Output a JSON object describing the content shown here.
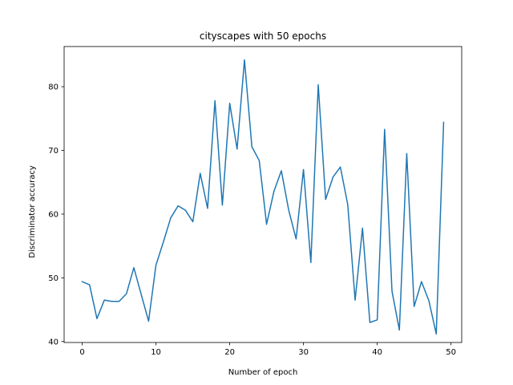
{
  "chart_data": {
    "type": "line",
    "title": "cityscapes with 50 epochs",
    "xlabel": "Number of epoch",
    "ylabel": "Discriminator accuracy",
    "xlim": [
      -2.45,
      51.45
    ],
    "ylim": [
      39.85,
      86.3
    ],
    "xticks": [
      0,
      10,
      20,
      30,
      40,
      50
    ],
    "yticks": [
      40,
      50,
      60,
      70,
      80
    ],
    "grid": false,
    "legend": "none",
    "series": [
      {
        "color": "#1f77b4",
        "x": [
          0,
          1,
          2,
          3,
          4,
          5,
          6,
          7,
          8,
          9,
          10,
          11,
          12,
          13,
          14,
          15,
          16,
          17,
          18,
          19,
          20,
          21,
          22,
          23,
          24,
          25,
          26,
          27,
          28,
          29,
          30,
          31,
          32,
          33,
          34,
          35,
          36,
          37,
          38,
          39,
          40,
          41,
          42,
          43,
          44,
          45,
          46,
          47,
          48,
          49
        ],
        "y": [
          49.4,
          48.9,
          43.6,
          46.5,
          46.3,
          46.3,
          47.5,
          51.6,
          47.4,
          43.2,
          52.0,
          55.6,
          59.4,
          61.3,
          60.6,
          58.8,
          66.4,
          60.9,
          77.8,
          61.4,
          77.4,
          70.2,
          84.2,
          70.6,
          68.4,
          58.4,
          63.6,
          66.8,
          60.6,
          56.1,
          67.0,
          52.4,
          80.3,
          62.3,
          65.8,
          67.4,
          61.5,
          46.5,
          57.8,
          43.0,
          43.4,
          73.3,
          47.9,
          41.8,
          69.5,
          45.5,
          49.4,
          46.4,
          41.2,
          74.4
        ]
      }
    ]
  }
}
